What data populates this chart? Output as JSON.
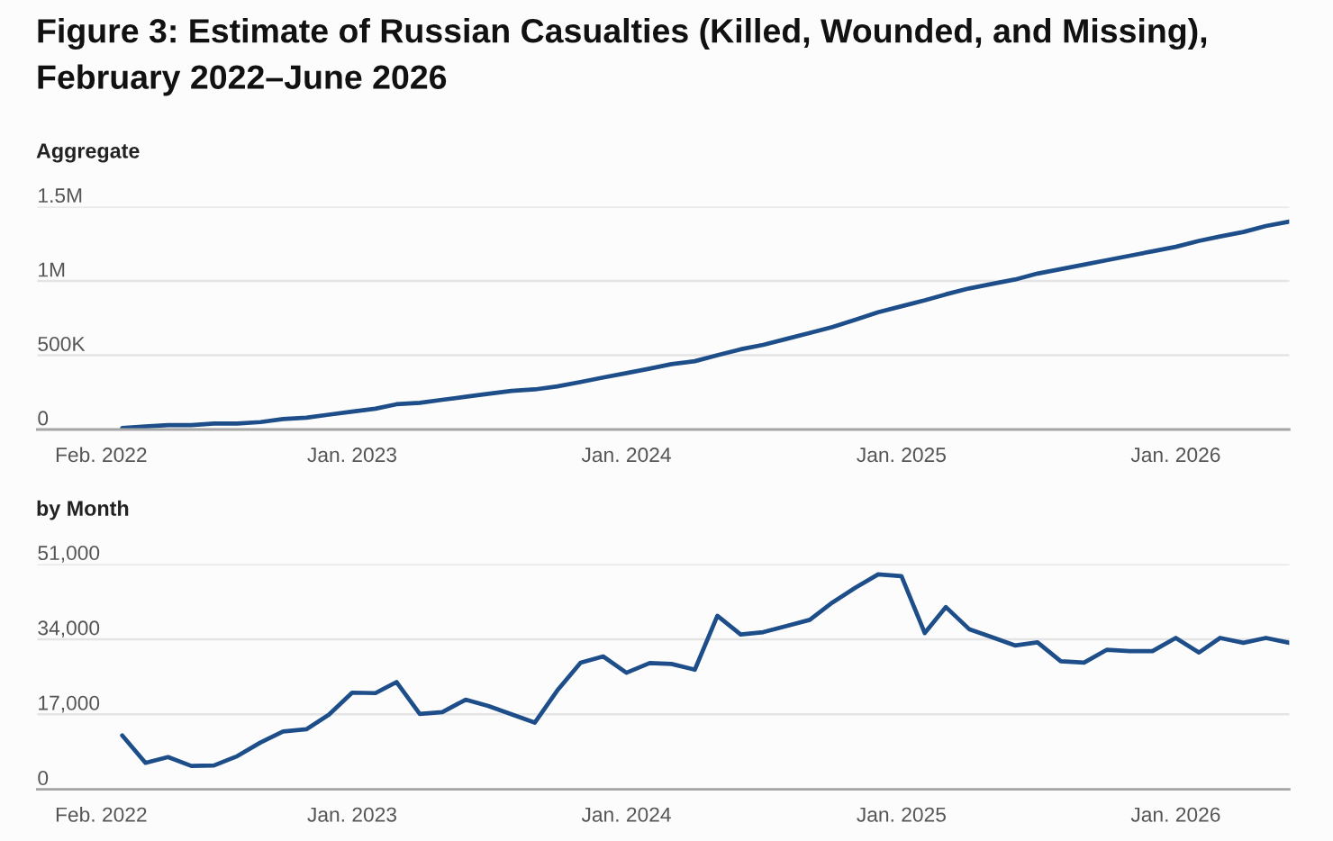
{
  "chart_data": [
    {
      "type": "line",
      "title": "Figure 3: Estimate of Russian Casualties (Killed, Wounded, and Missing), February 2022–June 2026",
      "ylabel": "Aggregate",
      "x": [
        "2022-03",
        "2022-04",
        "2022-05",
        "2022-06",
        "2022-07",
        "2022-08",
        "2022-09",
        "2022-10",
        "2022-11",
        "2022-12",
        "2023-01",
        "2023-02",
        "2023-03",
        "2023-04",
        "2023-05",
        "2023-06",
        "2023-07",
        "2023-08",
        "2023-09",
        "2023-10",
        "2023-11",
        "2023-12",
        "2024-01",
        "2024-02",
        "2024-03",
        "2024-04",
        "2024-05",
        "2024-06",
        "2024-07",
        "2024-08",
        "2024-09",
        "2024-10",
        "2024-11",
        "2024-12",
        "2025-01",
        "2025-02",
        "2025-03",
        "2025-04",
        "2025-05",
        "2025-06",
        "2025-07",
        "2025-08",
        "2025-09",
        "2025-10",
        "2025-11",
        "2025-12",
        "2026-01",
        "2026-02",
        "2026-03",
        "2026-04",
        "2026-05",
        "2026-06"
      ],
      "series": [
        {
          "color": "#1d4e89",
          "values": [
            10000,
            20000,
            30000,
            30000,
            40000,
            40000,
            50000,
            70000,
            80000,
            100000,
            120000,
            140000,
            170000,
            180000,
            200000,
            220000,
            240000,
            260000,
            270000,
            290000,
            320000,
            350000,
            380000,
            410000,
            440000,
            460000,
            500000,
            540000,
            570000,
            610000,
            650000,
            690000,
            740000,
            790000,
            830000,
            870000,
            910000,
            950000,
            980000,
            1010000,
            1050000,
            1080000,
            1110000,
            1140000,
            1170000,
            1200000,
            1230000,
            1270000,
            1300000,
            1330000,
            1370000,
            1400000
          ]
        }
      ],
      "xlim": [
        "2021-11-08",
        "2026-06-01"
      ],
      "xticks": [
        {
          "value": "2022-02",
          "label": "Feb. 2022"
        },
        {
          "value": "2023-01",
          "label": "Jan. 2023"
        },
        {
          "value": "2024-01",
          "label": "Jan. 2024"
        },
        {
          "value": "2025-01",
          "label": "Jan. 2025"
        },
        {
          "value": "2026-01",
          "label": "Jan. 2026"
        }
      ],
      "ylim": [
        0,
        1500000
      ],
      "yticks": [
        0,
        {
          "value": 500000,
          "label": "500K"
        },
        {
          "value": 1000000,
          "label": "1M"
        },
        {
          "value": 1500000,
          "label": "1.5M"
        }
      ],
      "grid": "y"
    },
    {
      "type": "line",
      "ylabel": "by Month",
      "x": [
        "2022-03",
        "2022-04",
        "2022-05",
        "2022-06",
        "2022-07",
        "2022-08",
        "2022-09",
        "2022-10",
        "2022-11",
        "2022-12",
        "2023-01",
        "2023-02",
        "2023-03",
        "2023-04",
        "2023-05",
        "2023-06",
        "2023-07",
        "2023-08",
        "2023-09",
        "2023-10",
        "2023-11",
        "2023-12",
        "2024-01",
        "2024-02",
        "2024-03",
        "2024-04",
        "2024-05",
        "2024-06",
        "2024-07",
        "2024-08",
        "2024-09",
        "2024-10",
        "2024-11",
        "2024-12",
        "2025-01",
        "2025-02",
        "2025-03",
        "2025-04",
        "2025-05",
        "2025-06",
        "2025-07",
        "2025-08",
        "2025-09",
        "2025-10",
        "2025-11",
        "2025-12",
        "2026-01",
        "2026-02",
        "2026-03",
        "2026-04",
        "2026-05",
        "2026-06"
      ],
      "series": [
        {
          "color": "#1d4e89",
          "values": [
            12200,
            6000,
            7300,
            5300,
            5400,
            7500,
            10600,
            13100,
            13600,
            16900,
            21900,
            21800,
            24300,
            17100,
            17500,
            20300,
            18900,
            17000,
            15100,
            22400,
            28700,
            30100,
            26400,
            28600,
            28400,
            27100,
            39300,
            35100,
            35600,
            37000,
            38400,
            42300,
            45700,
            48700,
            48300,
            35400,
            41300,
            36300,
            34500,
            32600,
            33300,
            29000,
            28700,
            31600,
            31300,
            31300,
            34300,
            31000,
            34300,
            33200,
            34300,
            33200
          ]
        }
      ],
      "xlim": [
        "2021-11-08",
        "2026-06-01"
      ],
      "xticks": [
        {
          "value": "2022-02",
          "label": "Feb. 2022"
        },
        {
          "value": "2023-01",
          "label": "Jan. 2023"
        },
        {
          "value": "2024-01",
          "label": "Jan. 2024"
        },
        {
          "value": "2025-01",
          "label": "Jan. 2025"
        },
        {
          "value": "2026-01",
          "label": "Jan. 2026"
        }
      ],
      "ylim": [
        0,
        51000
      ],
      "yticks": [
        0,
        {
          "value": 17000,
          "label": "17,000"
        },
        {
          "value": 34000,
          "label": "34,000"
        },
        {
          "value": 51000,
          "label": "51,000"
        }
      ],
      "grid": "y"
    }
  ]
}
